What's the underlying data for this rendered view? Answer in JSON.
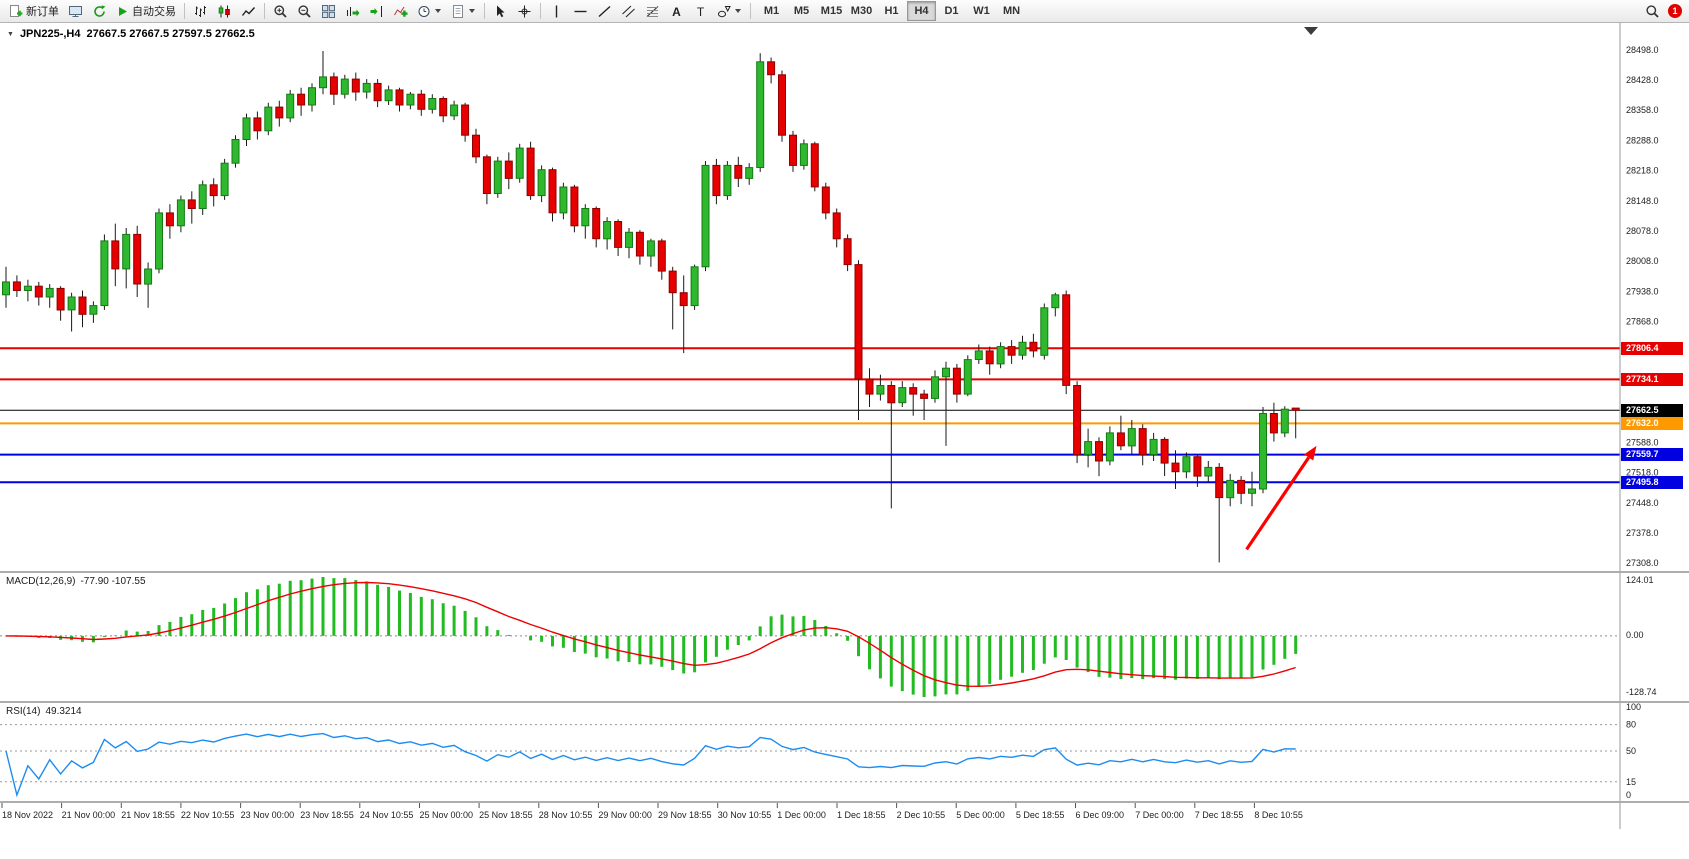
{
  "toolbar": {
    "new_order": "新订单",
    "autotrading": "自动交易",
    "timeframes": [
      "M1",
      "M5",
      "M15",
      "M30",
      "H1",
      "H4",
      "D1",
      "W1",
      "MN"
    ],
    "active_timeframe": "H4",
    "notification_badge": "1"
  },
  "chart": {
    "symbol": "JPN225-,H4",
    "ohlc": "27667.5 27667.5 27597.5 27662.5",
    "price_ticks": [
      "28498.0",
      "28428.0",
      "28358.0",
      "28288.0",
      "28218.0",
      "28148.0",
      "28078.0",
      "28008.0",
      "27938.0",
      "27868.0",
      "27798.0",
      "27728.0",
      "27658.0",
      "27588.0",
      "27518.0",
      "27448.0",
      "27378.0",
      "27308.0"
    ],
    "h_lines": [
      {
        "price": 27806.4,
        "label": "27806.4",
        "color": "#e60000",
        "width": 2
      },
      {
        "price": 27734.1,
        "label": "27734.1",
        "color": "#e60000",
        "width": 2
      },
      {
        "price": 27662.5,
        "label": "27662.5",
        "color": "#000000",
        "width": 1
      },
      {
        "price": 27632.0,
        "label": "27632.0",
        "color": "#ff9900",
        "width": 2
      },
      {
        "price": 27559.7,
        "label": "27559.7",
        "color": "#0000e0",
        "width": 2
      },
      {
        "price": 27495.8,
        "label": "27495.8",
        "color": "#0000e0",
        "width": 2
      }
    ],
    "arrow": {
      "from_bar": 113.5,
      "from_price": 27340,
      "to_bar": 119.9,
      "to_price": 27580,
      "color": "#ff0000"
    },
    "colors": {
      "up": "#2eb82e",
      "up_border": "#157a15",
      "down": "#e60000",
      "down_border": "#8f0000"
    }
  },
  "chart_data": {
    "type": "candlestick",
    "symbol": "JPN225-",
    "timeframe": "H4",
    "current_bar": {
      "open": 27667.5,
      "high": 27667.5,
      "low": 27597.5,
      "close": 27662.5
    },
    "price_range": [
      27308,
      28498
    ],
    "time_labels": [
      "18 Nov 2022",
      "21 Nov 00:00",
      "21 Nov 18:55",
      "22 Nov 10:55",
      "23 Nov 00:00",
      "23 Nov 18:55",
      "24 Nov 10:55",
      "25 Nov 00:00",
      "25 Nov 18:55",
      "28 Nov 10:55",
      "29 Nov 00:00",
      "29 Nov 18:55",
      "30 Nov 10:55",
      "1 Dec 00:00",
      "1 Dec 18:55",
      "2 Dec 10:55",
      "5 Dec 00:00",
      "5 Dec 18:55",
      "6 Dec 09:00",
      "7 Dec 00:00",
      "7 Dec 18:55",
      "8 Dec 10:55"
    ],
    "candles": [
      [
        27930,
        27995,
        27900,
        27960
      ],
      [
        27960,
        27975,
        27925,
        27940
      ],
      [
        27940,
        27965,
        27915,
        27950
      ],
      [
        27950,
        27960,
        27905,
        27925
      ],
      [
        27925,
        27955,
        27900,
        27945
      ],
      [
        27945,
        27950,
        27870,
        27895
      ],
      [
        27895,
        27935,
        27845,
        27925
      ],
      [
        27925,
        27940,
        27855,
        27885
      ],
      [
        27885,
        27915,
        27865,
        27905
      ],
      [
        27905,
        28070,
        27895,
        28055
      ],
      [
        28055,
        28095,
        27950,
        27990
      ],
      [
        27990,
        28085,
        27945,
        28070
      ],
      [
        28070,
        28090,
        27925,
        27955
      ],
      [
        27955,
        28005,
        27900,
        27990
      ],
      [
        27990,
        28130,
        27980,
        28120
      ],
      [
        28120,
        28140,
        28060,
        28090
      ],
      [
        28090,
        28160,
        28075,
        28150
      ],
      [
        28150,
        28170,
        28095,
        28130
      ],
      [
        28130,
        28195,
        28115,
        28185
      ],
      [
        28185,
        28200,
        28135,
        28160
      ],
      [
        28160,
        28245,
        28150,
        28235
      ],
      [
        28235,
        28300,
        28225,
        28290
      ],
      [
        28290,
        28350,
        28275,
        28340
      ],
      [
        28340,
        28355,
        28290,
        28310
      ],
      [
        28310,
        28375,
        28300,
        28365
      ],
      [
        28365,
        28380,
        28320,
        28340
      ],
      [
        28340,
        28405,
        28330,
        28395
      ],
      [
        28395,
        28410,
        28345,
        28370
      ],
      [
        28370,
        28420,
        28355,
        28410
      ],
      [
        28410,
        28495,
        28395,
        28435
      ],
      [
        28435,
        28445,
        28370,
        28395
      ],
      [
        28395,
        28440,
        28385,
        28430
      ],
      [
        28430,
        28445,
        28380,
        28400
      ],
      [
        28400,
        28430,
        28385,
        28420
      ],
      [
        28420,
        28430,
        28365,
        28380
      ],
      [
        28380,
        28415,
        28370,
        28405
      ],
      [
        28405,
        28410,
        28355,
        28370
      ],
      [
        28370,
        28400,
        28360,
        28395
      ],
      [
        28395,
        28405,
        28345,
        28360
      ],
      [
        28360,
        28395,
        28350,
        28385
      ],
      [
        28385,
        28390,
        28330,
        28345
      ],
      [
        28345,
        28380,
        28335,
        28370
      ],
      [
        28370,
        28375,
        28285,
        28300
      ],
      [
        28300,
        28315,
        28235,
        28250
      ],
      [
        28250,
        28255,
        28140,
        28165
      ],
      [
        28165,
        28250,
        28155,
        28240
      ],
      [
        28240,
        28260,
        28175,
        28200
      ],
      [
        28200,
        28280,
        28190,
        28270
      ],
      [
        28270,
        28285,
        28150,
        28160
      ],
      [
        28160,
        28230,
        28145,
        28220
      ],
      [
        28220,
        28225,
        28100,
        28120
      ],
      [
        28120,
        28190,
        28105,
        28180
      ],
      [
        28180,
        28185,
        28075,
        28090
      ],
      [
        28090,
        28140,
        28060,
        28130
      ],
      [
        28130,
        28135,
        28040,
        28060
      ],
      [
        28060,
        28110,
        28035,
        28100
      ],
      [
        28100,
        28105,
        28020,
        28040
      ],
      [
        28040,
        28085,
        28015,
        28075
      ],
      [
        28075,
        28080,
        28000,
        28020
      ],
      [
        28020,
        28060,
        27995,
        28055
      ],
      [
        28055,
        28060,
        27965,
        27985
      ],
      [
        27985,
        27995,
        27850,
        27935
      ],
      [
        27935,
        27975,
        27795,
        27905
      ],
      [
        27905,
        28000,
        27895,
        27995
      ],
      [
        27995,
        28240,
        27985,
        28230
      ],
      [
        28230,
        28245,
        28140,
        28160
      ],
      [
        28160,
        28240,
        28150,
        28230
      ],
      [
        28230,
        28250,
        28180,
        28200
      ],
      [
        28200,
        28235,
        28185,
        28225
      ],
      [
        28225,
        28490,
        28215,
        28470
      ],
      [
        28470,
        28480,
        28420,
        28440
      ],
      [
        28440,
        28450,
        28285,
        28300
      ],
      [
        28300,
        28310,
        28215,
        28230
      ],
      [
        28230,
        28290,
        28220,
        28280
      ],
      [
        28280,
        28285,
        28170,
        28180
      ],
      [
        28180,
        28190,
        28105,
        28120
      ],
      [
        28120,
        28130,
        28040,
        28060
      ],
      [
        28060,
        28070,
        27985,
        28000
      ],
      [
        28000,
        28010,
        27640,
        27735
      ],
      [
        27735,
        27760,
        27670,
        27700
      ],
      [
        27700,
        27745,
        27685,
        27720
      ],
      [
        27720,
        27730,
        27435,
        27680
      ],
      [
        27680,
        27730,
        27670,
        27715
      ],
      [
        27715,
        27725,
        27650,
        27700
      ],
      [
        27700,
        27710,
        27640,
        27690
      ],
      [
        27690,
        27755,
        27680,
        27740
      ],
      [
        27740,
        27775,
        27580,
        27760
      ],
      [
        27760,
        27770,
        27680,
        27700
      ],
      [
        27700,
        27790,
        27695,
        27780
      ],
      [
        27780,
        27815,
        27770,
        27800
      ],
      [
        27800,
        27810,
        27745,
        27770
      ],
      [
        27770,
        27820,
        27760,
        27810
      ],
      [
        27810,
        27825,
        27770,
        27790
      ],
      [
        27790,
        27835,
        27780,
        27820
      ],
      [
        27820,
        27840,
        27785,
        27800
      ],
      [
        27790,
        27910,
        27780,
        27900
      ],
      [
        27900,
        27935,
        27880,
        27930
      ],
      [
        27930,
        27940,
        27700,
        27720
      ],
      [
        27720,
        27730,
        27540,
        27560
      ],
      [
        27560,
        27620,
        27530,
        27590
      ],
      [
        27590,
        27600,
        27510,
        27545
      ],
      [
        27545,
        27625,
        27535,
        27610
      ],
      [
        27610,
        27650,
        27570,
        27580
      ],
      [
        27580,
        27640,
        27560,
        27620
      ],
      [
        27620,
        27630,
        27535,
        27560
      ],
      [
        27560,
        27610,
        27545,
        27595
      ],
      [
        27595,
        27600,
        27510,
        27540
      ],
      [
        27540,
        27570,
        27480,
        27520
      ],
      [
        27520,
        27565,
        27505,
        27555
      ],
      [
        27555,
        27560,
        27485,
        27510
      ],
      [
        27510,
        27545,
        27495,
        27530
      ],
      [
        27530,
        27540,
        27310,
        27460
      ],
      [
        27460,
        27515,
        27440,
        27500
      ],
      [
        27500,
        27510,
        27445,
        27470
      ],
      [
        27470,
        27520,
        27440,
        27480
      ],
      [
        27480,
        27670,
        27470,
        27655
      ],
      [
        27655,
        27680,
        27590,
        27610
      ],
      [
        27610,
        27672,
        27600,
        27665
      ],
      [
        27667.5,
        27667.5,
        27597.5,
        27662.5
      ]
    ]
  },
  "macd": {
    "title": "MACD(12,26,9)",
    "values": "-77.90 -107.55",
    "axis": {
      "max": "124.01",
      "zero": "0.00",
      "min": "-128.74"
    }
  },
  "rsi": {
    "title": "RSI(14)",
    "value": "49.3214",
    "axis": [
      "100",
      "80",
      "50",
      "15",
      "0"
    ],
    "levels": [
      80,
      50,
      15
    ]
  }
}
